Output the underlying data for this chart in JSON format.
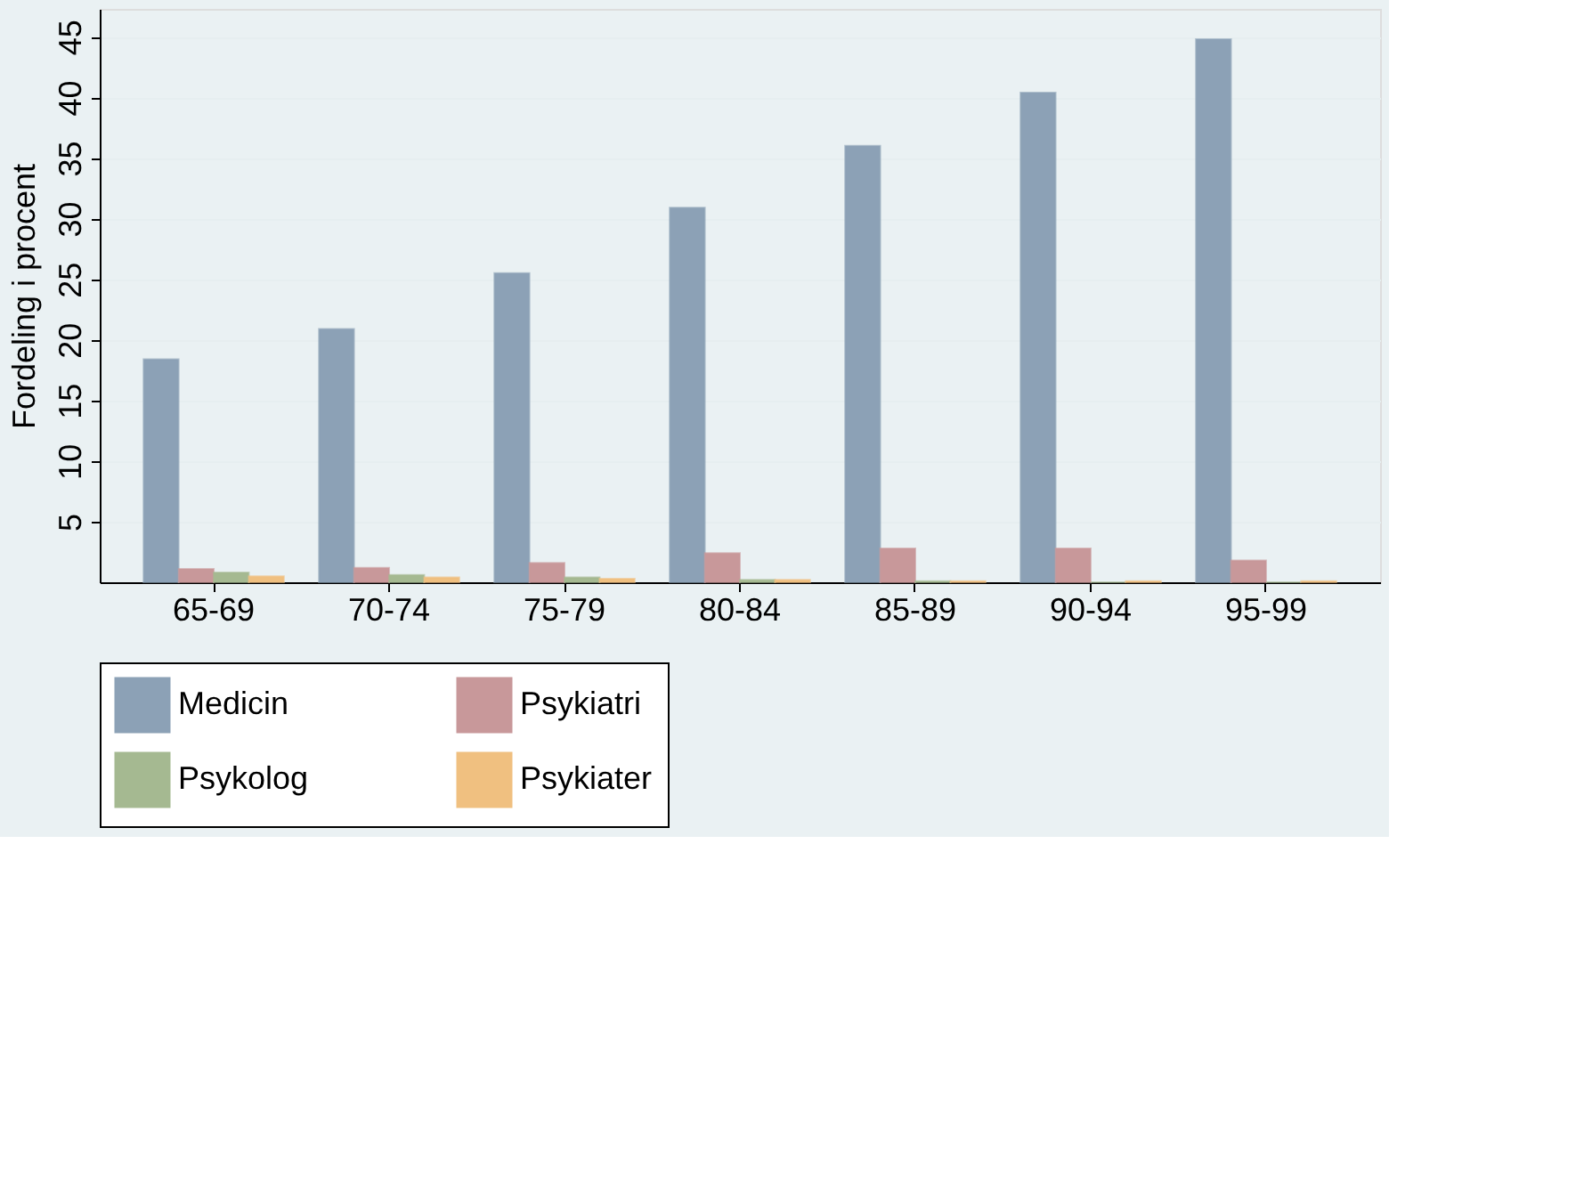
{
  "chart_data": {
    "type": "bar",
    "ylabel": "Fordeling i procent",
    "categories": [
      "65-69",
      "70-74",
      "75-79",
      "80-84",
      "85-89",
      "90-94",
      "95-99"
    ],
    "series": [
      {
        "name": "Medicin",
        "color": "#8ca1b6",
        "values": [
          18.4,
          20.9,
          25.5,
          30.9,
          36.0,
          40.4,
          44.8
        ]
      },
      {
        "name": "Psykiatri",
        "color": "#c8989a",
        "values": [
          1.1,
          1.2,
          1.6,
          2.4,
          2.8,
          2.8,
          1.8
        ]
      },
      {
        "name": "Psykolog",
        "color": "#a5b991",
        "values": [
          0.8,
          0.6,
          0.4,
          0.2,
          0.1,
          0,
          0
        ]
      },
      {
        "name": "Psykiater",
        "color": "#f0c080",
        "values": [
          0.5,
          0.4,
          0.3,
          0.2,
          0.1,
          0.1,
          0.1
        ]
      }
    ],
    "ylim": [
      0,
      47.3
    ],
    "yticks": [
      5,
      10,
      15,
      20,
      25,
      30,
      35,
      40,
      45
    ],
    "grid": "y",
    "legend": "bottom"
  }
}
